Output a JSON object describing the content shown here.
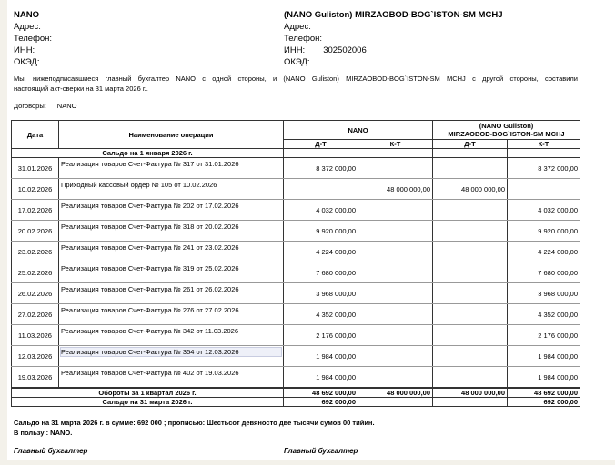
{
  "left_party": {
    "name": "NANO",
    "address_label": "Адрес:",
    "phone_label": "Телефон:",
    "inn_label": "ИНН:",
    "inn": "",
    "okzd_label": "ОКЭД:"
  },
  "right_party": {
    "name": "(NANO Guliston)  MIRZAOBOD-BOG`ISTON-SM  MCHJ",
    "address_label": "Адрес:",
    "phone_label": "Телефон:",
    "inn_label": "ИНН:",
    "inn": "302502006",
    "okzd_label": "ОКЭД:"
  },
  "intro_line1": "Мы, нижеподписавшиеся главный бухгалтер  NANO с одной стороны, и  (NANO Guliston)  MIRZAOBOD-BOG`ISTON-SM  MCHJ  с другой стороны, составили",
  "intro_line2": "настоящий акт-сверки на 31 марта 2026 г..",
  "contracts_label": "Договоры:",
  "contracts_value": "NANO",
  "table": {
    "col_date": "Дата",
    "col_op": "Наименование  операции",
    "col_left": "NANO",
    "col_right_1": "(NANO Guliston)",
    "col_right_2": "MIRZAOBOD-BOG`ISTON-SM  MCHJ",
    "dt": "Д-Т",
    "kt": "К-Т",
    "opening": "Сальдо на  1 января 2026 г.",
    "rows": [
      {
        "date": "31.01.2026",
        "op": "Реализация товаров Счет-Фактура № 317 от 31.01.2026",
        "l_dt": "8 372 000,00",
        "l_kt": "",
        "r_dt": "",
        "r_kt": "8 372 000,00"
      },
      {
        "date": "10.02.2026",
        "op": "Приходный кассовый ордер № 105 от 10.02.2026",
        "l_dt": "",
        "l_kt": "48 000 000,00",
        "r_dt": "48 000 000,00",
        "r_kt": ""
      },
      {
        "date": "17.02.2026",
        "op": "Реализация товаров Счет-Фактура № 202 от 17.02.2026",
        "l_dt": "4 032 000,00",
        "l_kt": "",
        "r_dt": "",
        "r_kt": "4 032 000,00"
      },
      {
        "date": "20.02.2026",
        "op": "Реализация товаров Счет-Фактура № 318 от 20.02.2026",
        "l_dt": "9 920 000,00",
        "l_kt": "",
        "r_dt": "",
        "r_kt": "9 920 000,00"
      },
      {
        "date": "23.02.2026",
        "op": "Реализация товаров Счет-Фактура № 241 от 23.02.2026",
        "l_dt": "4 224 000,00",
        "l_kt": "",
        "r_dt": "",
        "r_kt": "4 224 000,00"
      },
      {
        "date": "25.02.2026",
        "op": "Реализация товаров Счет-Фактура № 319 от 25.02.2026",
        "l_dt": "7 680 000,00",
        "l_kt": "",
        "r_dt": "",
        "r_kt": "7 680 000,00"
      },
      {
        "date": "26.02.2026",
        "op": "Реализация товаров Счет-Фактура № 261 от 26.02.2026",
        "l_dt": "3 968 000,00",
        "l_kt": "",
        "r_dt": "",
        "r_kt": "3 968 000,00"
      },
      {
        "date": "27.02.2026",
        "op": "Реализация товаров Счет-Фактура № 276 от 27.02.2026",
        "l_dt": "4 352 000,00",
        "l_kt": "",
        "r_dt": "",
        "r_kt": "4 352 000,00"
      },
      {
        "date": "11.03.2026",
        "op": "Реализация товаров Счет-Фактура № 342 от 11.03.2026",
        "l_dt": "2 176 000,00",
        "l_kt": "",
        "r_dt": "",
        "r_kt": "2 176 000,00"
      },
      {
        "date": "12.03.2026",
        "op": "Реализация товаров Счет-Фактура № 354 от 12.03.2026",
        "l_dt": "1 984 000,00",
        "l_kt": "",
        "r_dt": "",
        "r_kt": "1 984 000,00"
      },
      {
        "date": "19.03.2026",
        "op": "Реализация товаров Счет-Фактура № 402 от 19.03.2026",
        "l_dt": "1 984 000,00",
        "l_kt": "",
        "r_dt": "",
        "r_kt": "1 984 000,00"
      }
    ],
    "turnover": {
      "label": "Обороты за 1 квартал 2026 г.",
      "l_dt": "48 692 000,00",
      "l_kt": "48 000 000,00",
      "r_dt": "48 000 000,00",
      "r_kt": "48 692 000,00"
    },
    "closing": {
      "label": "Сальдо на  31 марта 2026 г.",
      "l_dt": "692 000,00",
      "l_kt": "",
      "r_dt": "",
      "r_kt": "692 000,00"
    }
  },
  "summary_line1": "Сальдо на 31 марта 2026 г.   в сумме: 692 000 ; прописью: Шестьсот девяносто две тысячи сумов 00 тийин.",
  "summary_line2": "В пользу : NANO.",
  "sign_left": "Главный бухгалтер",
  "sign_right": "Главный бухгалтер"
}
